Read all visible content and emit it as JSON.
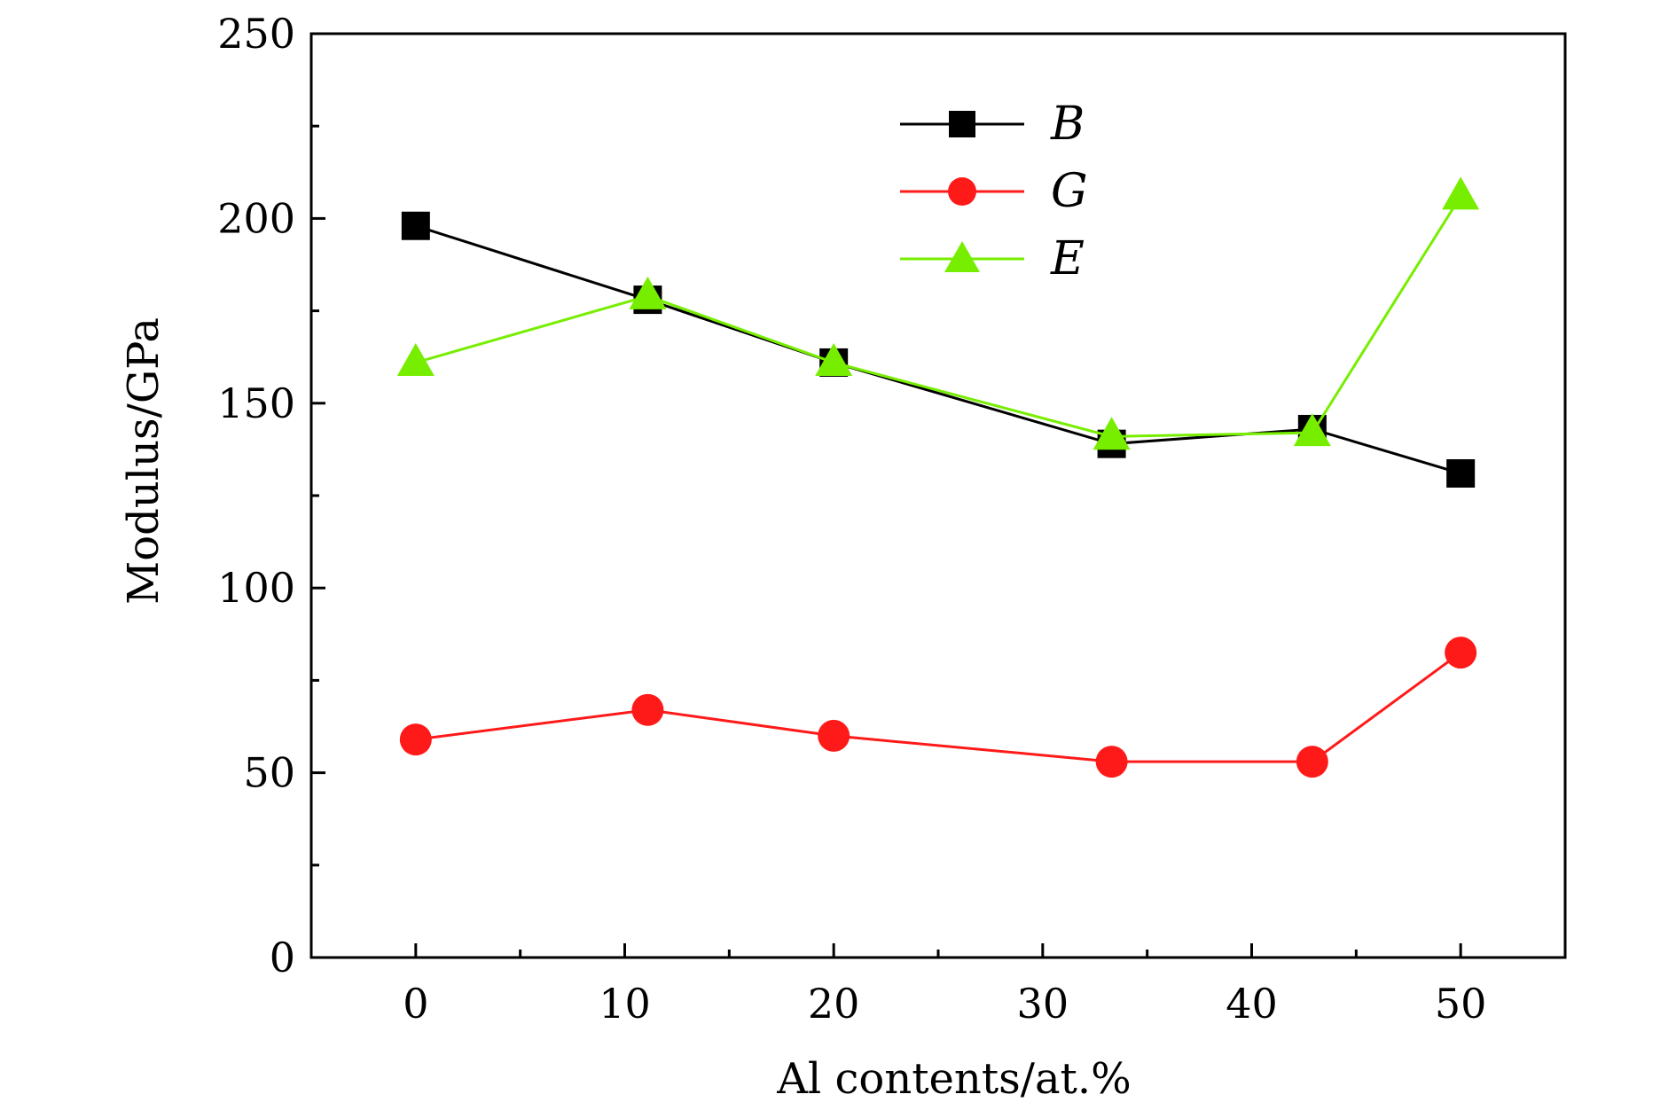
{
  "chart_data": {
    "type": "line",
    "title": "",
    "xlabel": "Al contents/at.%",
    "ylabel": "Modulus/GPa",
    "xlim": [
      -5,
      55
    ],
    "ylim": [
      0,
      250
    ],
    "x_ticks": [
      0,
      10,
      20,
      30,
      40,
      50
    ],
    "x_tick_labels": [
      "0",
      "10",
      "20",
      "30",
      "40",
      "50"
    ],
    "y_ticks": [
      0,
      50,
      100,
      150,
      200,
      250
    ],
    "y_tick_labels": [
      "0",
      "50",
      "100",
      "150",
      "200",
      "250"
    ],
    "grid": false,
    "legend_position": "top-center",
    "x": [
      0,
      11.1,
      20,
      33.3,
      42.9,
      50
    ],
    "series": [
      {
        "name": "B",
        "color": "#000000",
        "marker": "square",
        "values": [
          198,
          178,
          161,
          139,
          143,
          131
        ]
      },
      {
        "name": "G",
        "color": "#ff1a1a",
        "marker": "circle",
        "values": [
          59,
          67,
          60,
          53,
          53,
          82.5
        ]
      },
      {
        "name": "E",
        "color": "#77ee00",
        "marker": "triangle",
        "values": [
          161,
          179,
          161,
          141,
          142,
          206
        ]
      }
    ]
  }
}
